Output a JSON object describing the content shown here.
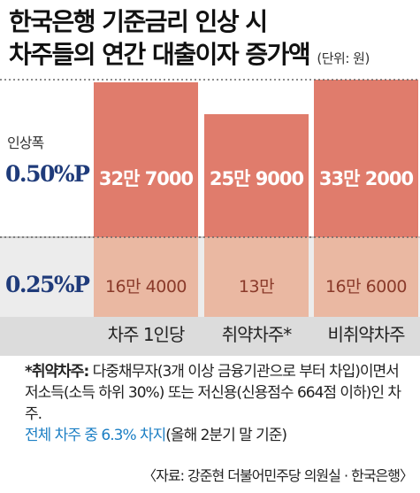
{
  "title": {
    "line1": "한국은행 기준금리 인상 시",
    "line2": "차주들의 연간 대출이자 증가액",
    "unit": "(단위: 원)"
  },
  "levels": {
    "caption": "인상폭",
    "high": "0.50%P",
    "low": "0.25%P"
  },
  "colors": {
    "bar_050": "#e07c6c",
    "bar_025": "#eab8a2",
    "label_blue": "#1f3b7a",
    "highlight_blue": "#1c7fc4"
  },
  "chart_data": {
    "type": "bar",
    "categories": [
      "차주 1인당",
      "취약차주*",
      "비취약차주"
    ],
    "series": [
      {
        "name": "0.25%P",
        "values": [
          164000,
          130000,
          166000
        ],
        "labels": [
          "16만 4000",
          "13만",
          "16만 6000"
        ]
      },
      {
        "name": "0.50%P",
        "values": [
          327000,
          259000,
          332000
        ],
        "labels": [
          "32만 7000",
          "25만 9000",
          "33만 2000"
        ]
      }
    ]
  },
  "note": {
    "head": "*취약차주:",
    "body": " 다중채무자(3개 이상 금융기관으로 부터 차입)이면서 저소득(소득 하위 30%) 또는 저신용(신용점수 664점 이하)인 차주.",
    "highlight": "전체 차주 중 6.3% 차지",
    "tail": "(올해 2분기 말 기준)"
  },
  "source": "〈자료: 강준현 더불어민주당 의원실 · 한국은행〉"
}
